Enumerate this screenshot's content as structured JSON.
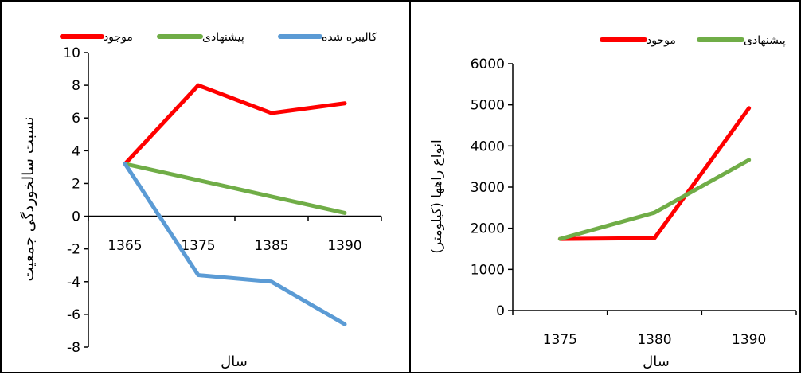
{
  "chart_data": [
    {
      "type": "line",
      "ylabel": "نسبت سالخوردگی جمعیت",
      "xlabel": "سال",
      "categories": [
        "1365",
        "1375",
        "1385",
        "1390"
      ],
      "ylim": [
        -8,
        10
      ],
      "yticks": [
        "10",
        "8",
        "6",
        "4",
        "2",
        "0",
        "-2",
        "-4",
        "-6",
        "-8"
      ],
      "legend_position": "top",
      "series": [
        {
          "name": "موجود",
          "color": "#ff0000",
          "values": [
            3.2,
            8.0,
            6.3,
            6.9
          ]
        },
        {
          "name": "پیشنهادی",
          "color": "#70ad47",
          "values": [
            3.2,
            2.2,
            1.2,
            0.2
          ]
        },
        {
          "name": "کالیبره شده",
          "color": "#5b9bd5",
          "values": [
            3.2,
            -3.6,
            -4.0,
            -6.6
          ]
        }
      ]
    },
    {
      "type": "line",
      "ylabel": "انواع راهها (کیلومتر)",
      "xlabel": "سال",
      "categories": [
        "1375",
        "1380",
        "1390"
      ],
      "ylim": [
        0,
        6000
      ],
      "yticks": [
        "6000",
        "5000",
        "4000",
        "3000",
        "2000",
        "1000",
        "0"
      ],
      "legend_position": "top",
      "series": [
        {
          "name": "موجود",
          "color": "#ff0000",
          "values": [
            1740,
            1760,
            4920
          ]
        },
        {
          "name": "پیشنهادی",
          "color": "#70ad47",
          "values": [
            1740,
            2380,
            3660
          ]
        }
      ]
    }
  ]
}
